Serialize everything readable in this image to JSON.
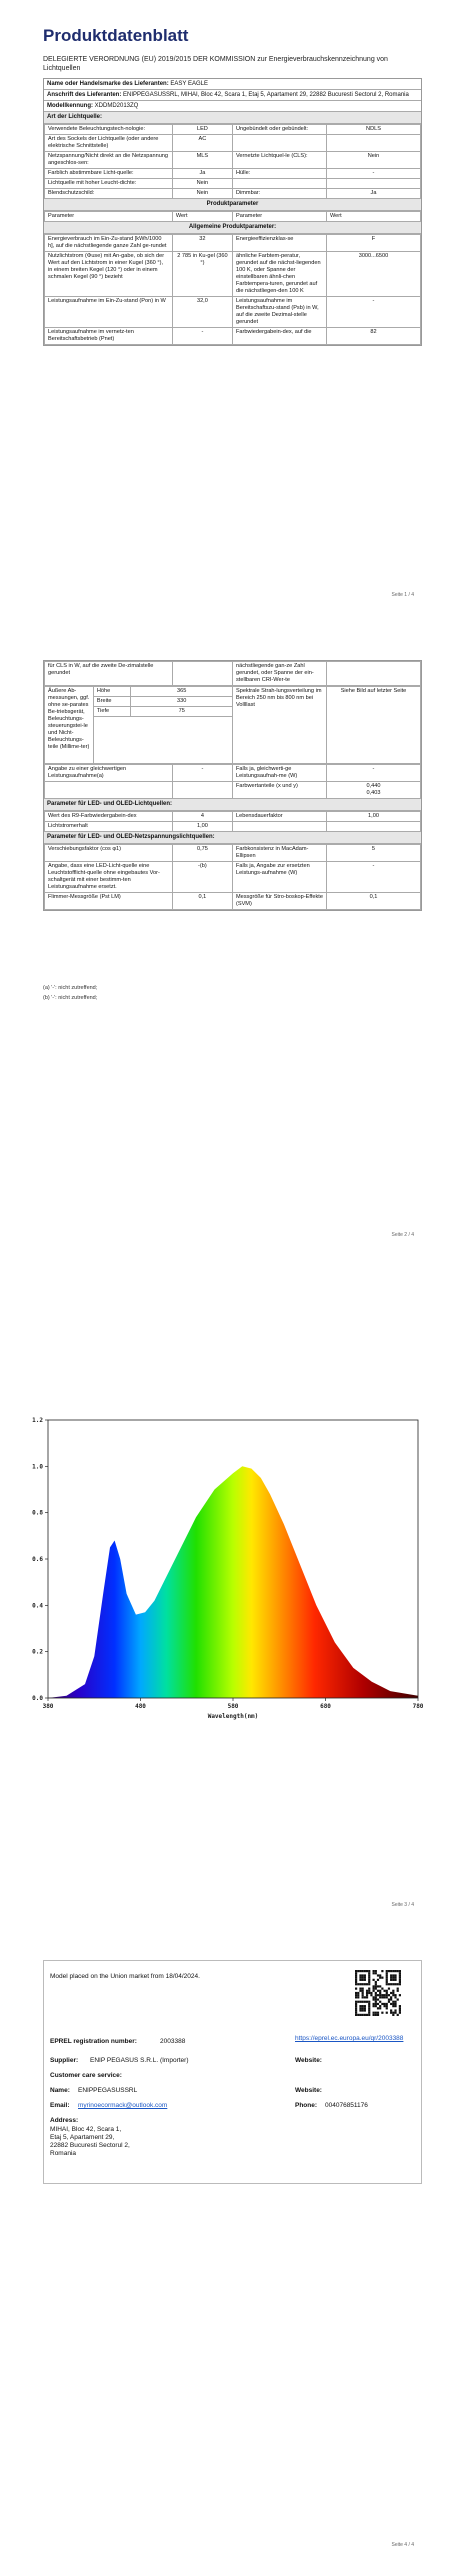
{
  "doc": {
    "title": "Produktdatenblatt",
    "subtitle": "DELEGIERTE VERORDNUNG (EU) 2019/2015 DER KOMMISSION zur Energieverbrauchskennzeichnung von Lichtquellen",
    "trade_label": "Name oder Handelsmarke des Lieferanten:",
    "trade_value": "EASY EAGLE",
    "address_label": "Anschrift des Lieferanten:",
    "address_value": "ENIPPEGASUSSRL, MIHAI, Bloc 42, Scara 1, Etaj 5, Apartament 29, 22882 Bucuresti Sectorul 2, Romania",
    "model_label": "Modellkennung:",
    "model_value": "XDDMD2013ZQ",
    "section_light": "Art der Lichtquelle:",
    "light_rows": [
      {
        "l1": "Verwendete Beleuchtungstech-nologie:",
        "v1": "LED",
        "l2": "Ungebündelt oder gebündelt:",
        "v2": "NDLS"
      },
      {
        "l1": "Art des Sockels der Lichtquelle (oder andere elektrische Schnittstelle)",
        "v1": "AC",
        "l2": "",
        "v2": ""
      },
      {
        "l1": "Netzspannung/Nicht direkt an die Netzspannung angeschlos-sen:",
        "v1": "MLS",
        "l2": "Vernetzte Lichtquel-le (CLS):",
        "v2": "Nein"
      },
      {
        "l1": "Farblich abstimmbare Licht-quelle:",
        "v1": "Ja",
        "l2": "Hülle:",
        "v2": "-"
      },
      {
        "l1": "Lichtquelle mit hoher Leucht-dichte:",
        "v1": "Nein",
        "l2": "",
        "v2": ""
      },
      {
        "l1": "Blendschutzschild:",
        "v1": "Nein",
        "l2": "Dimmbar:",
        "v2": "Ja"
      }
    ],
    "section_params": "Produktparameter",
    "param_header": [
      "Parameter",
      "Wert",
      "Parameter",
      "Wert"
    ],
    "section_general": "Allgemeine Produktparameter:",
    "general_rows": [
      {
        "l1": "Energieverbrauch im Ein-Zu-stand [kWh/1000 h], auf die nächstliegende ganze Zahl ge-rundet",
        "v1": "32",
        "l2": "Energieeffizienzklas-se",
        "v2": "F"
      },
      {
        "l1": "Nutzlichtstrom (Φuse) mit An-gabe, ob sich der Wert auf den Lichtstrom in einer Kugel (360 °), in einem breiten Kegel (120 °) oder in einem schmalen Kegel (90 °) bezieht",
        "v1": "2 785 in Ku-gel (360 °)",
        "l2": "ähnliche Farbtem-peratur, gerundet auf die nächst-liegenden 100 K, oder Spanne der einstellbaren ähnli-chen Farbtempera-turen, gerundet auf die nächstliegen-den 100 K",
        "v2": "3000...6500"
      },
      {
        "l1": "Leistungsaufnahme im Ein-Zu-stand (Pon) in W",
        "v1": "32,0",
        "l2": "Leistungsaufnahme im Bereitschaftszu-stand (Psb) in W, auf die zweite Dezimal-stelle gerundet",
        "v2": "-"
      },
      {
        "l1": "Leistungsaufnahme im vernetz-ten Bereitschaftsbetrieb (Pnet)",
        "v1": "-",
        "l2": "Farbwiedergabein-dex, auf die",
        "v2": "82"
      }
    ],
    "page1_num": "Seite 1 / 4",
    "p2_top": [
      {
        "l1": "für CLS in W, auf die zweite De-zimalstelle gerundet",
        "v1": "",
        "l2": "nächstliegende gan-ze Zahl gerundet, oder Spanne der ein-stellbaren CRI-Wer-te",
        "v2": ""
      }
    ],
    "dim_label": "Äußere Ab-messungen, ggf. ohne se-parates Be-triebsgerät, Beleuchtungs-steuerungstei-le und Nicht-Beleuchtungs-teile (Millime-ter)",
    "dims": [
      {
        "k": "Höhe",
        "v": "365"
      },
      {
        "k": "Breite",
        "v": "330"
      },
      {
        "k": "Tiefe",
        "v": "75"
      }
    ],
    "spectral_label": "Spektrale Strah-lungsverteilung im Bereich 250 nm bis 800 nm bei Vollllast",
    "spectral_value": "Siehe Bild auf letzter Seite",
    "equiv_label": "Angabe zu einer gleichwertigen Leistungsaufnahme(a)",
    "equiv_value": "-",
    "chroma_label": "Falls ja, gleichwerti-ge Leistungsaufnah-me (W)",
    "chroma_value": "-",
    "farbwert_label": "Farbwertanteile (x und y)",
    "farbwert_x": "0,440",
    "farbwert_y": "0,403",
    "section_led": "Parameter für LED- und OLED-Lichtquellen:",
    "led_rows": [
      {
        "l1": "Wert des R9-Farbwiedergabein-dex",
        "v1": "4",
        "l2": "Lebensdauerfaktor",
        "v2": "1,00"
      },
      {
        "l1": "Lichtstromerhalt",
        "v1": "1,00",
        "l2": "",
        "v2": ""
      }
    ],
    "section_led_net": "Parameter für LED- und OLED-Netzspannungslichtquellen:",
    "led_net_rows": [
      {
        "l1": "Verschiebungsfaktor (cos φ1)",
        "v1": "0,75",
        "l2": "Farbkonsistenz in MacAdam-Ellipsen",
        "v2": "5"
      },
      {
        "l1": "Angabe, dass eine LED-Licht-quelle eine Leuchtstofflicht-quelle ohne eingebautes Vor-schaltgerät mit einer bestimm-ten Leistungsaufnahme ersetzt.",
        "v1": "-(b)",
        "l2": "Falls ja, Angabe zur ersetzten Leistungs-aufnahme (W)",
        "v2": "-"
      },
      {
        "l1": "Flimmer-Messgröße (Pst LM)",
        "v1": "0,1",
        "l2": "Messgröße für Stro-boskop-Effekte (SVM)",
        "v2": "0,1"
      }
    ],
    "fn_a": "(a) '-': nicht zutreffend;",
    "fn_b": "(b) '-': nicht zutreffend;",
    "page2_num": "Seite 2 / 4",
    "page3_num": "Seite 3 / 4",
    "eprel": {
      "placed": "Model placed on the Union market from 18/04/2024.",
      "reg_label": "EPREL registration number:",
      "reg_value": "2003388",
      "link": "https://eprel.ec.europa.eu/qr/2003388",
      "supplier_label": "Supplier:",
      "supplier_value": "ENIP PEGASUS S.R.L. (Importer)",
      "website_label": "Website:",
      "cs_label": "Customer care service:",
      "name_label": "Name:",
      "name_value": "ENIPPEGASUSSRL",
      "website2_label": "Website:",
      "email_label": "Email:",
      "email_value": "myrinoecormack@outlook.com",
      "phone_label": "Phone:",
      "phone_value": "004076851176",
      "addr_label": "Address:",
      "addr_lines": [
        "MIHAI, Bloc 42, Scara 1,",
        "Etaj 5, Apartament 29,",
        "22882 Bucuresti Sectorul 2,",
        "Romania"
      ]
    },
    "page4_num": "Seite 4 / 4"
  },
  "chart_data": {
    "type": "line",
    "title": "",
    "xlabel": "Wavelength(nm)",
    "ylabel": "",
    "xlim": [
      380,
      780
    ],
    "ylim": [
      0,
      1.2
    ],
    "xticks": [
      380,
      480,
      580,
      680,
      780
    ],
    "yticks": [
      0.0,
      0.2,
      0.4,
      0.6,
      0.8,
      1.0,
      1.2
    ],
    "ytick_labels": [
      "0.0",
      "0.2",
      "0.4",
      "0.6",
      "0.8",
      "1.0",
      "1.2"
    ],
    "x": [
      380,
      400,
      420,
      430,
      440,
      447,
      452,
      458,
      465,
      475,
      485,
      495,
      505,
      520,
      540,
      560,
      580,
      590,
      600,
      610,
      620,
      635,
      650,
      670,
      690,
      710,
      730,
      750,
      780
    ],
    "y": [
      0.0,
      0.01,
      0.06,
      0.18,
      0.46,
      0.65,
      0.68,
      0.6,
      0.45,
      0.36,
      0.37,
      0.42,
      0.5,
      0.62,
      0.78,
      0.9,
      0.97,
      1.0,
      0.99,
      0.95,
      0.88,
      0.75,
      0.6,
      0.4,
      0.24,
      0.13,
      0.07,
      0.03,
      0.01
    ]
  }
}
